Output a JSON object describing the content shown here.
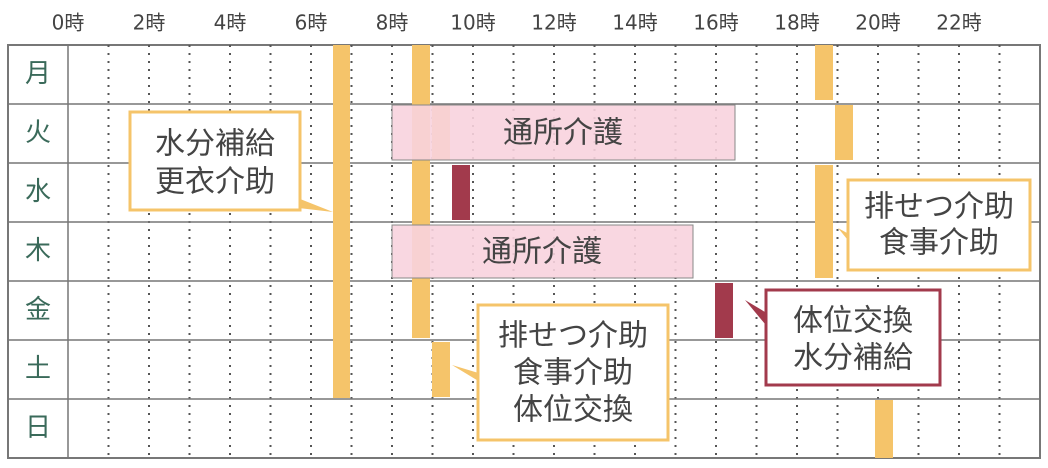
{
  "header": {
    "hours": [
      "0時",
      "2時",
      "4時",
      "6時",
      "8時",
      "10時",
      "12時",
      "14時",
      "16時",
      "18時",
      "20時",
      "22時"
    ]
  },
  "days": [
    "月",
    "火",
    "水",
    "木",
    "金",
    "土",
    "日"
  ],
  "services": [
    {
      "label": "通所介護"
    },
    {
      "label": "通所介護"
    }
  ],
  "callouts": [
    {
      "lines": [
        "水分補給",
        "更衣介助"
      ]
    },
    {
      "lines": [
        "排せつ介助",
        "食事介助"
      ]
    },
    {
      "lines": [
        "排せつ介助",
        "食事介助",
        "体位交換"
      ]
    },
    {
      "lines": [
        "体位交換",
        "水分補給"
      ]
    }
  ]
}
